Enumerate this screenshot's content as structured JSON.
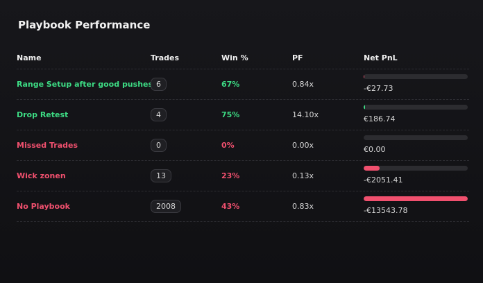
{
  "header": {
    "title": "Playbook Performance"
  },
  "table": {
    "columns": [
      "Name",
      "Trades",
      "Win %",
      "PF",
      "Net PnL"
    ],
    "rows": [
      {
        "name": "Range Setup after good pushes",
        "trades": "6",
        "win": "67%",
        "pf": "0.84x",
        "pnl": {
          "value": -27.73,
          "label": "-€27.73"
        },
        "color": "#3ddc84"
      },
      {
        "name": "Drop Retest",
        "trades": "4",
        "win": "75%",
        "pf": "14.10x",
        "pnl": {
          "value": 186.74,
          "label": "€186.74"
        },
        "color": "#3ddc84"
      },
      {
        "name": "Missed Trades",
        "trades": "0",
        "win": "0%",
        "pf": "0.00x",
        "pnl": {
          "value": 0,
          "label": "€0.00"
        },
        "color": "#f0506e"
      },
      {
        "name": "Wick zonen",
        "trades": "13",
        "win": "23%",
        "pf": "0.13x",
        "pnl": {
          "value": -2051.41,
          "label": "-€2051.41"
        },
        "color": "#f0506e"
      },
      {
        "name": "No Playbook",
        "trades": "2008",
        "win": "43%",
        "pf": "0.83x",
        "pnl": {
          "value": -13543.78,
          "label": "-€13543.78"
        },
        "color": "#f0506e"
      }
    ],
    "positive_color": "#3ddc84",
    "negative_color": "#f0506e"
  }
}
